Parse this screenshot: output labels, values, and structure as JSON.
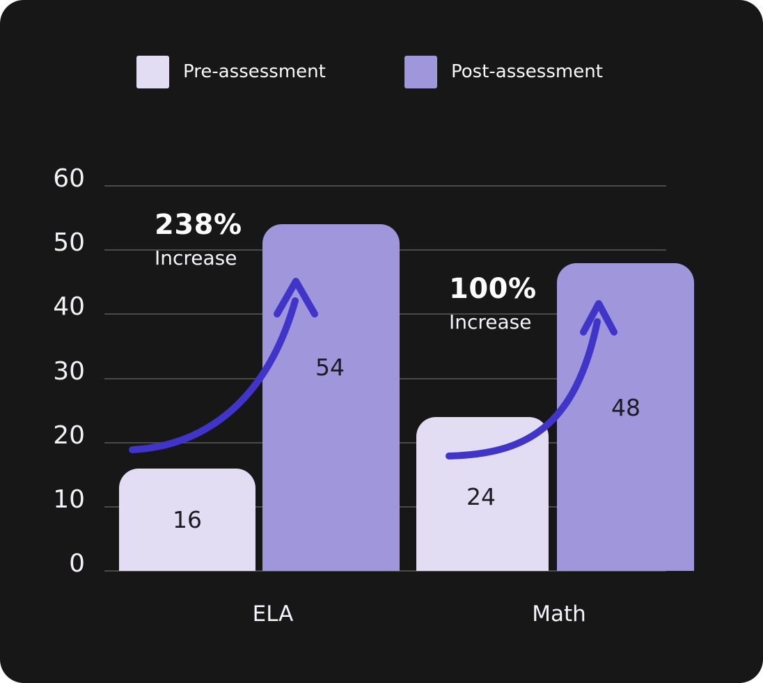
{
  "colors": {
    "card_background": "#171717",
    "gridline": "#4b4b4b",
    "axis_text": "#f4f2f7",
    "pre_bar": "#e2ddf2",
    "post_bar": "#a096dc",
    "arrow": "#4134c8",
    "bar_value_text": "#1d1a21",
    "annotation_text": "#ffffff"
  },
  "legend": {
    "items": [
      {
        "label": "Pre-assessment",
        "color": "#e2ddf2"
      },
      {
        "label": "Post-assessment",
        "color": "#a096dc"
      }
    ]
  },
  "chart_data": {
    "type": "bar",
    "categories": [
      "ELA",
      "Math"
    ],
    "series": [
      {
        "name": "Pre-assessment",
        "values": [
          16,
          24
        ],
        "color": "#e2ddf2"
      },
      {
        "name": "Post-assessment",
        "values": [
          54,
          48
        ],
        "color": "#a096dc"
      }
    ],
    "yticks": [
      0,
      10,
      20,
      30,
      40,
      50,
      60
    ],
    "ylim": [
      0,
      60
    ],
    "grid": true,
    "legend_position": "top",
    "annotations": [
      {
        "category": "ELA",
        "percent": "238%",
        "label": "Increase"
      },
      {
        "category": "Math",
        "percent": "100%",
        "label": "Increase"
      }
    ]
  }
}
